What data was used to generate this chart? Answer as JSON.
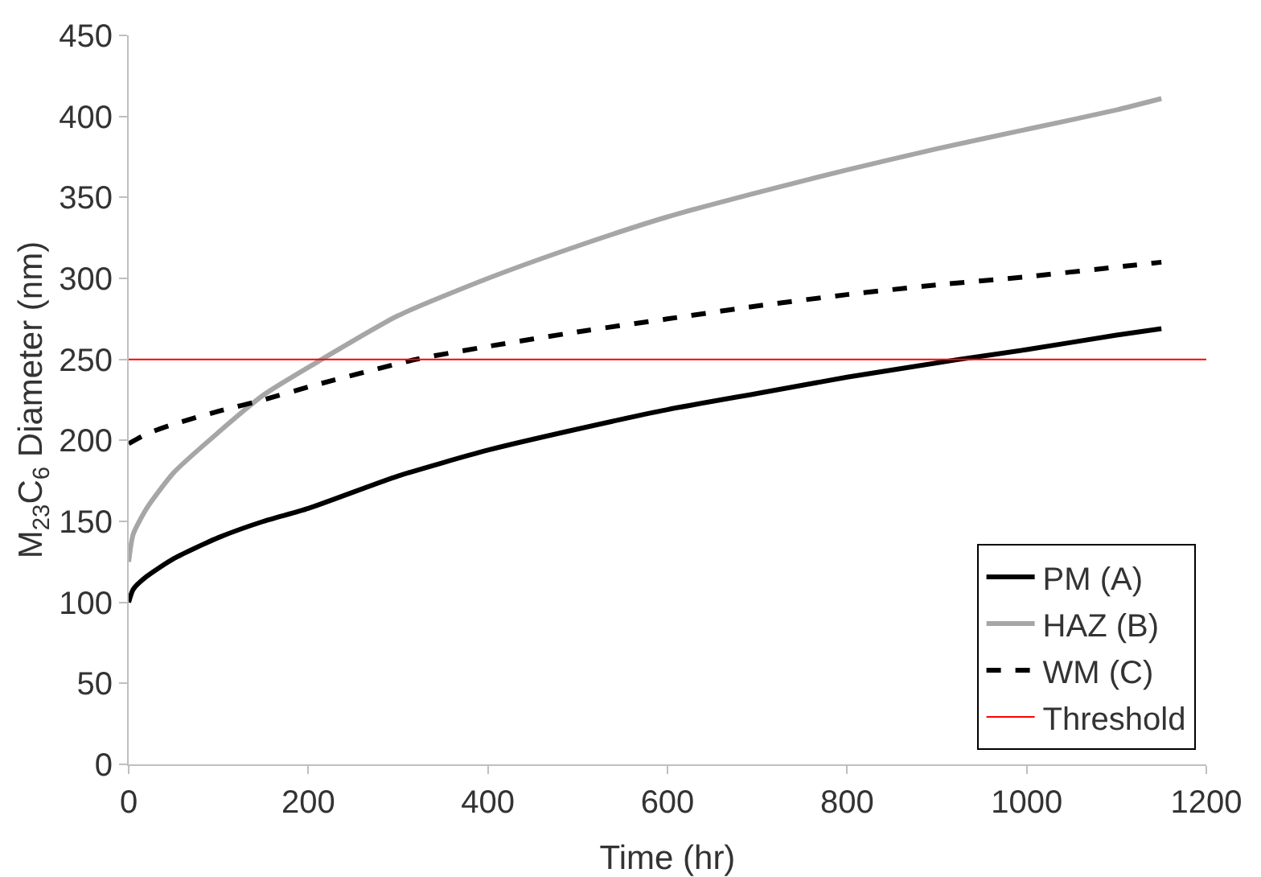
{
  "chart_data": {
    "type": "line",
    "xlabel": "Time (hr)",
    "ylabel": "M$_{23}$C$_{6}$ Diameter (nm)",
    "xlim": [
      0,
      1200
    ],
    "xticks": [
      0,
      200,
      400,
      600,
      800,
      1000,
      1200
    ],
    "ylim": [
      0,
      450
    ],
    "yticks": [
      0,
      50,
      100,
      150,
      200,
      250,
      300,
      350,
      400,
      450
    ],
    "grid": false,
    "legend": "bottom right",
    "marker": "none",
    "series": [
      {
        "name": "PM (A)",
        "color": "#000000",
        "line_style": "solid",
        "x": [
          0,
          5,
          20,
          50,
          100,
          150,
          200,
          300,
          400,
          500,
          600,
          700,
          800,
          925,
          1000,
          1100,
          1150
        ],
        "values": [
          100,
          108,
          116,
          127,
          140,
          150,
          158,
          178,
          194,
          207,
          219,
          229,
          239,
          250,
          256,
          265,
          269
        ]
      },
      {
        "name": "HAZ (B)",
        "color": "#a6a6a6",
        "line_style": "solid",
        "x": [
          0,
          5,
          20,
          50,
          100,
          150,
          215,
          300,
          400,
          500,
          600,
          700,
          800,
          900,
          1000,
          1100,
          1150
        ],
        "values": [
          125,
          142,
          158,
          180,
          205,
          228,
          250,
          277,
          300,
          320,
          338,
          353,
          367,
          380,
          392,
          404,
          411
        ]
      },
      {
        "name": "WM (C)",
        "color": "#000000",
        "line_style": "dashed",
        "x": [
          0,
          20,
          50,
          100,
          150,
          200,
          320,
          400,
          500,
          600,
          700,
          800,
          900,
          1000,
          1100,
          1150
        ],
        "values": [
          198,
          204,
          210,
          218,
          225,
          233,
          250,
          258,
          267,
          275,
          283,
          290,
          296,
          301,
          307,
          310
        ]
      }
    ],
    "ref_lines": [
      {
        "axis": "y",
        "value": 250,
        "label": "Threshold",
        "color": "#ff0000"
      }
    ]
  }
}
